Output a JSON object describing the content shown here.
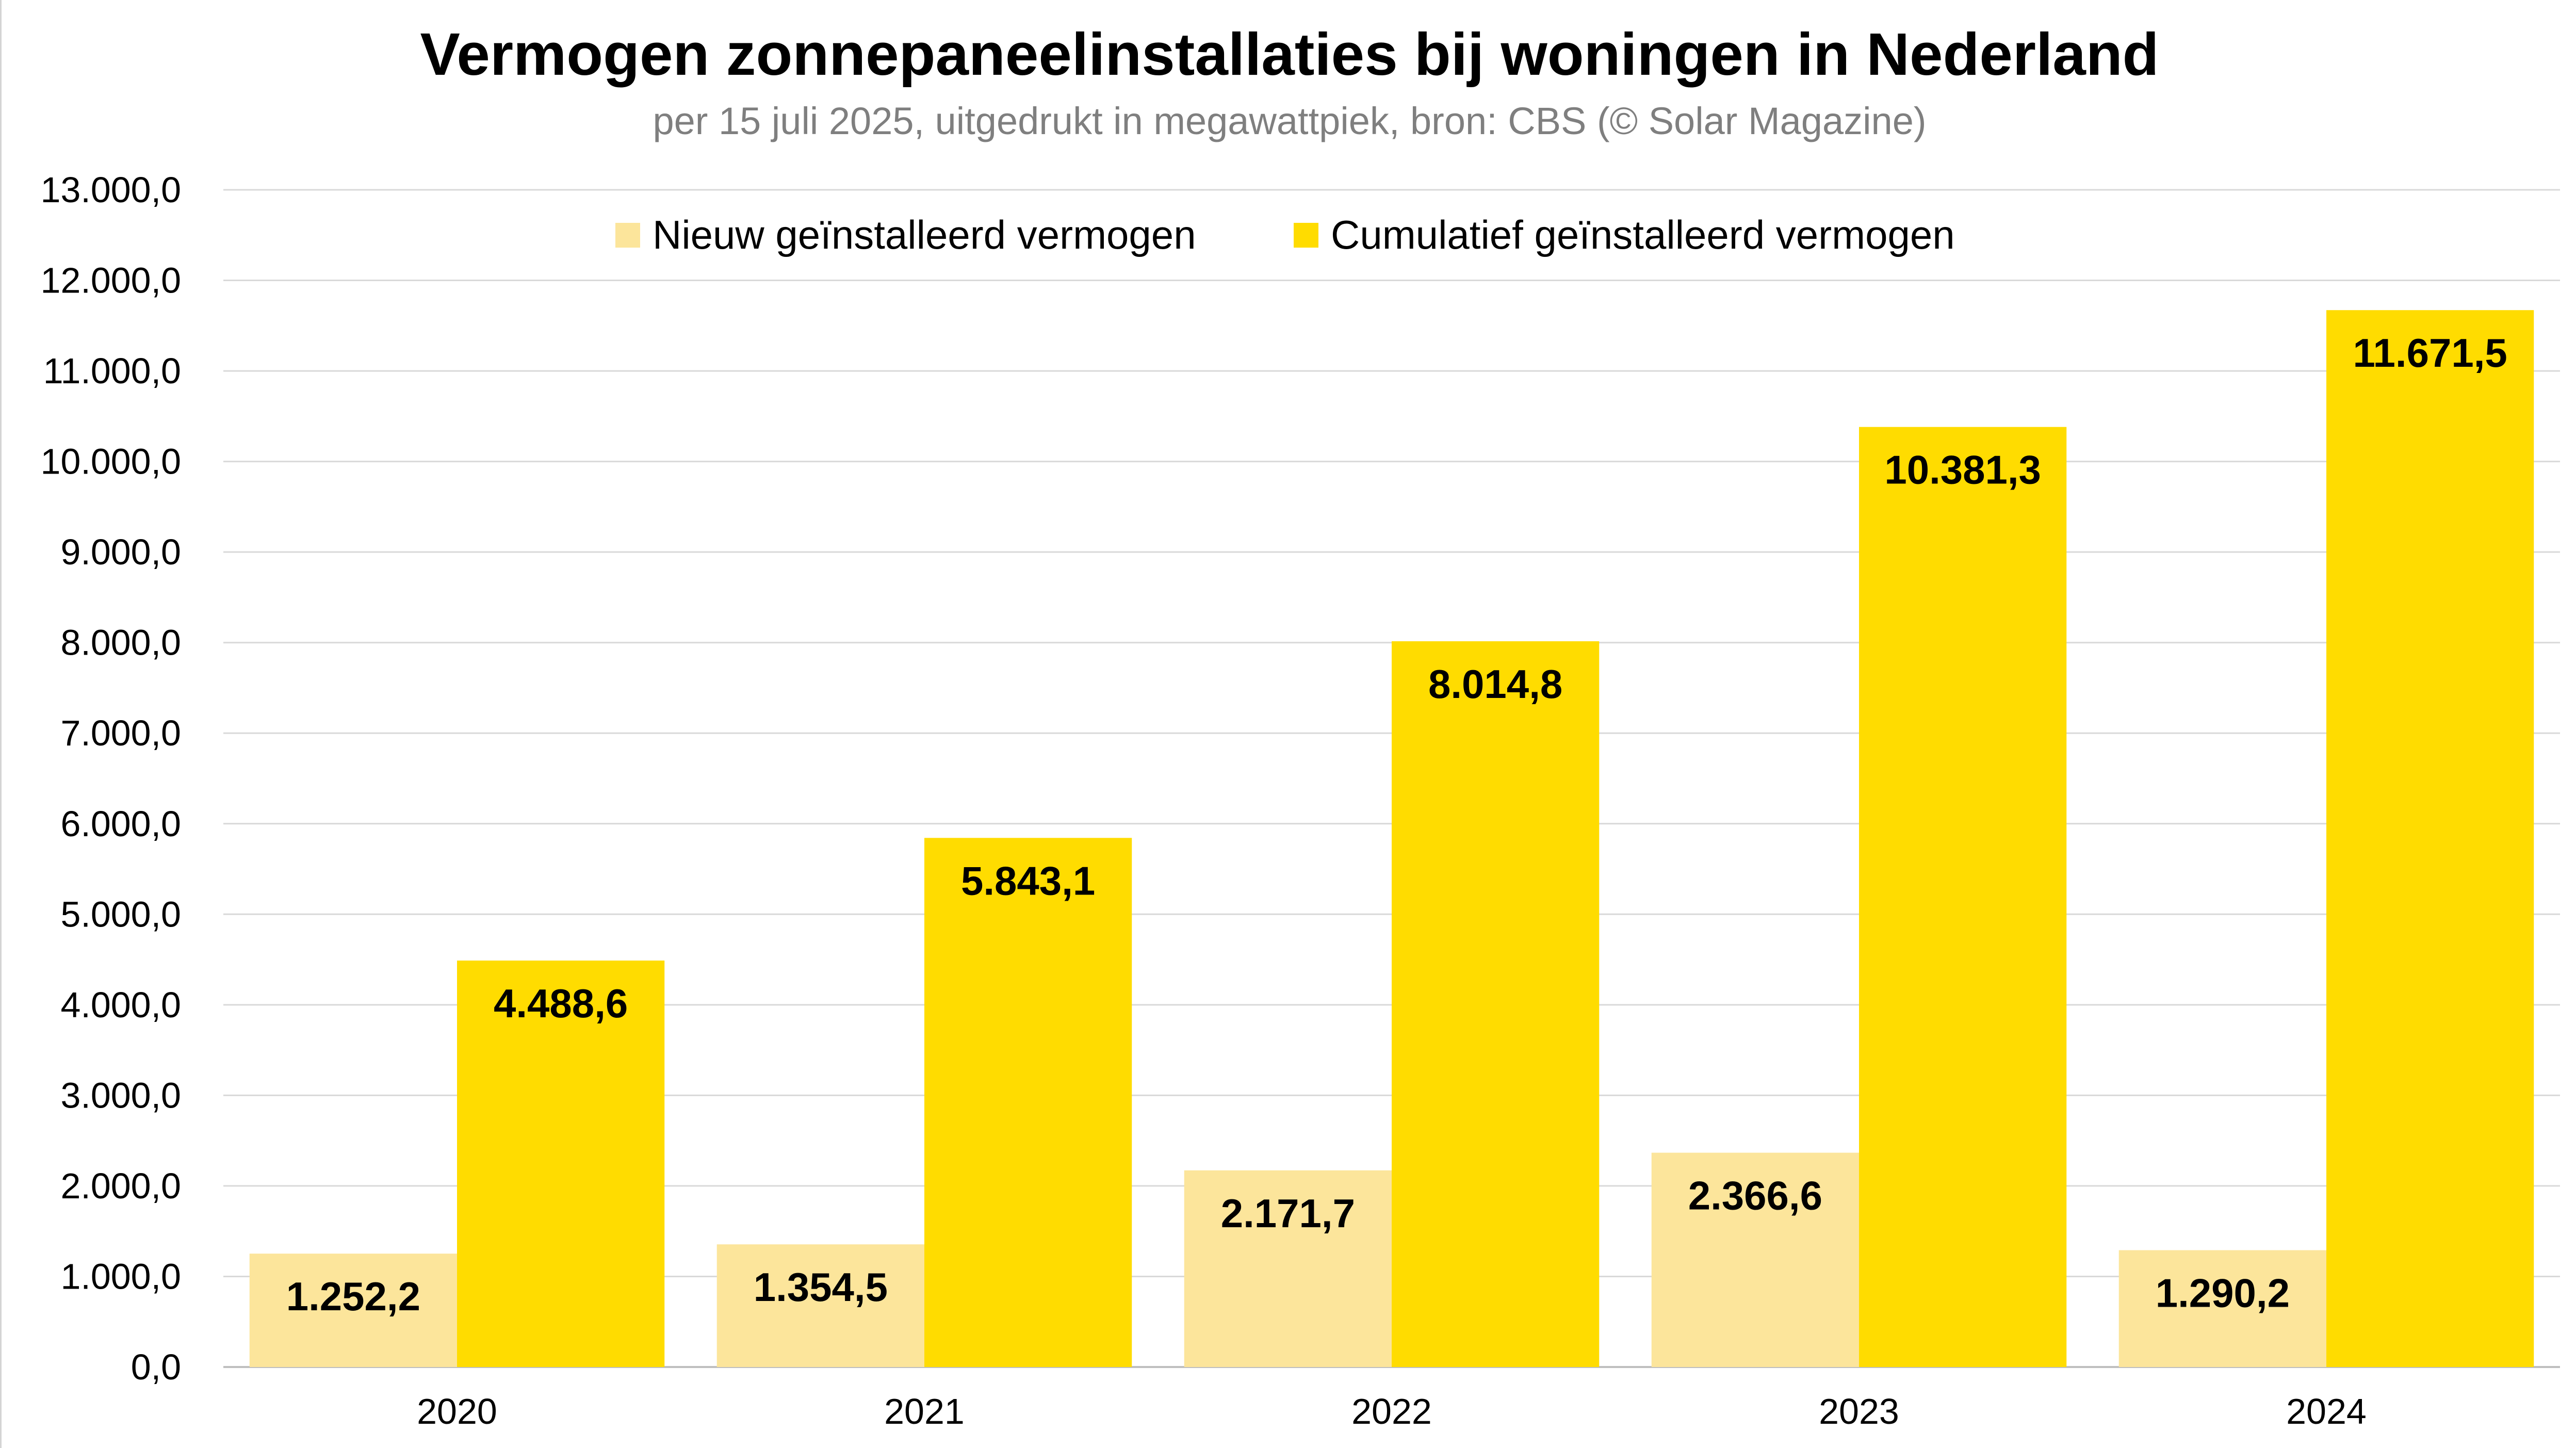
{
  "title": "Vermogen zonnepaneelinstallaties bij woningen in Nederland",
  "subtitle": "per 15 juli 2025, uitgedrukt in megawattpiek, bron: CBS (© Solar Magazine)",
  "colors": {
    "nieuw": "#fce59b",
    "cumulatief": "#ffdc00",
    "grid": "#d9d9d9",
    "axis": "#bfbfbf"
  },
  "chart_data": {
    "type": "bar",
    "categories": [
      "2020",
      "2021",
      "2022",
      "2023",
      "2024"
    ],
    "series": [
      {
        "name": "Nieuw geïnstalleerd vermogen",
        "values": [
          1252.2,
          1354.5,
          2171.7,
          2366.6,
          1290.2
        ],
        "labels": [
          "1.252,2",
          "1.354,5",
          "2.171,7",
          "2.366,6",
          "1.290,2"
        ]
      },
      {
        "name": "Cumulatief geïnstalleerd vermogen",
        "values": [
          4488.6,
          5843.1,
          8014.8,
          10381.3,
          11671.5
        ],
        "labels": [
          "4.488,6",
          "5.843,1",
          "8.014,8",
          "10.381,3",
          "11.671,5"
        ]
      }
    ],
    "ylim": [
      0,
      13000
    ],
    "yticks": [
      0,
      1000,
      2000,
      3000,
      4000,
      5000,
      6000,
      7000,
      8000,
      9000,
      10000,
      11000,
      12000,
      13000
    ],
    "ytick_labels": [
      "0,0",
      "1.000,0",
      "2.000,0",
      "3.000,0",
      "4.000,0",
      "5.000,0",
      "6.000,0",
      "7.000,0",
      "8.000,0",
      "9.000,0",
      "10.000,0",
      "11.000,0",
      "12.000,0",
      "13.000,0"
    ],
    "grid": true,
    "legend": "top-center"
  }
}
